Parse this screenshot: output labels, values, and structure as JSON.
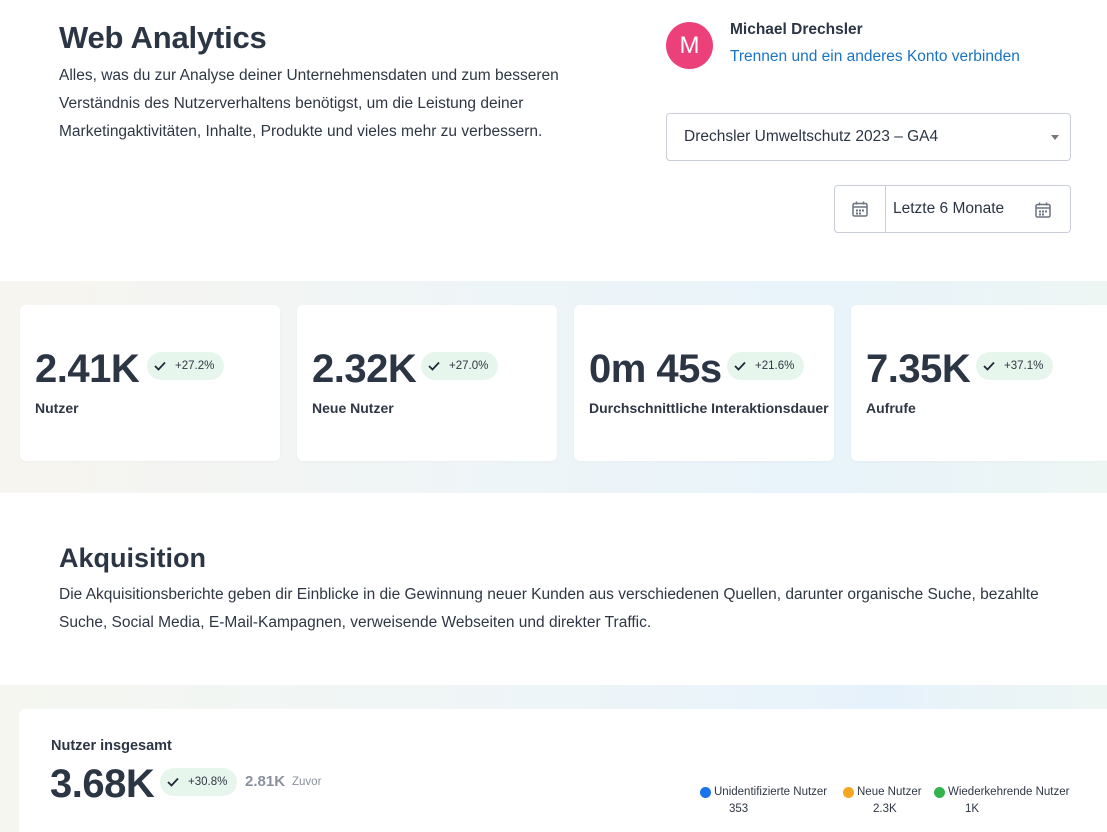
{
  "header": {
    "title": "Web Analytics",
    "description": "Alles, was du zur Analyse deiner Unternehmensdaten und zum besseren Verständnis des Nutzerverhaltens benötigst, um die Leistung deiner Marketingaktivitäten, Inhalte, Produkte und vieles mehr zu verbessern."
  },
  "account": {
    "avatar_letter": "M",
    "avatar_color": "#ec407a",
    "name": "Michael Drechsler",
    "link_label": "Trennen und ein anderes Konto verbinden"
  },
  "property_select": {
    "value": "Drechsler Umweltschutz 2023 – GA4"
  },
  "date_range": {
    "value": "Letzte 6 Monate"
  },
  "stats": [
    {
      "value": "2.41K",
      "change": "+27.2%",
      "label": "Nutzer"
    },
    {
      "value": "2.32K",
      "change": "+27.0%",
      "label": "Neue Nutzer"
    },
    {
      "value": "0m 45s",
      "change": "+21.6%",
      "label": "Durchschnittliche Interaktionsdauer"
    },
    {
      "value": "7.35K",
      "change": "+37.1%",
      "label": "Aufrufe"
    }
  ],
  "acquisition": {
    "title": "Akquisition",
    "description": "Die Akquisitionsberichte geben dir Einblicke in die Gewinnung neuer Kunden aus verschiedenen Quellen, darunter organische Suche, bezahlte Suche, Social Media, E-Mail-Kampagnen, verweisende Webseiten und direkter Traffic."
  },
  "total_users": {
    "title": "Nutzer insgesamt",
    "value": "3.68K",
    "change": "+30.8%",
    "previous_value": "2.81K",
    "previous_label": "Zuvor",
    "legend": [
      {
        "label": "Unidentifizierte Nutzer",
        "count": "353",
        "color": "#1a73e8"
      },
      {
        "label": "Neue Nutzer",
        "count": "2.3K",
        "color": "#f5a623"
      },
      {
        "label": "Wiederkehrende Nutzer",
        "count": "1K",
        "color": "#34b34f"
      }
    ]
  },
  "colors": {
    "positive_badge_bg": "#e7f6ec",
    "link": "#1a73c4"
  }
}
